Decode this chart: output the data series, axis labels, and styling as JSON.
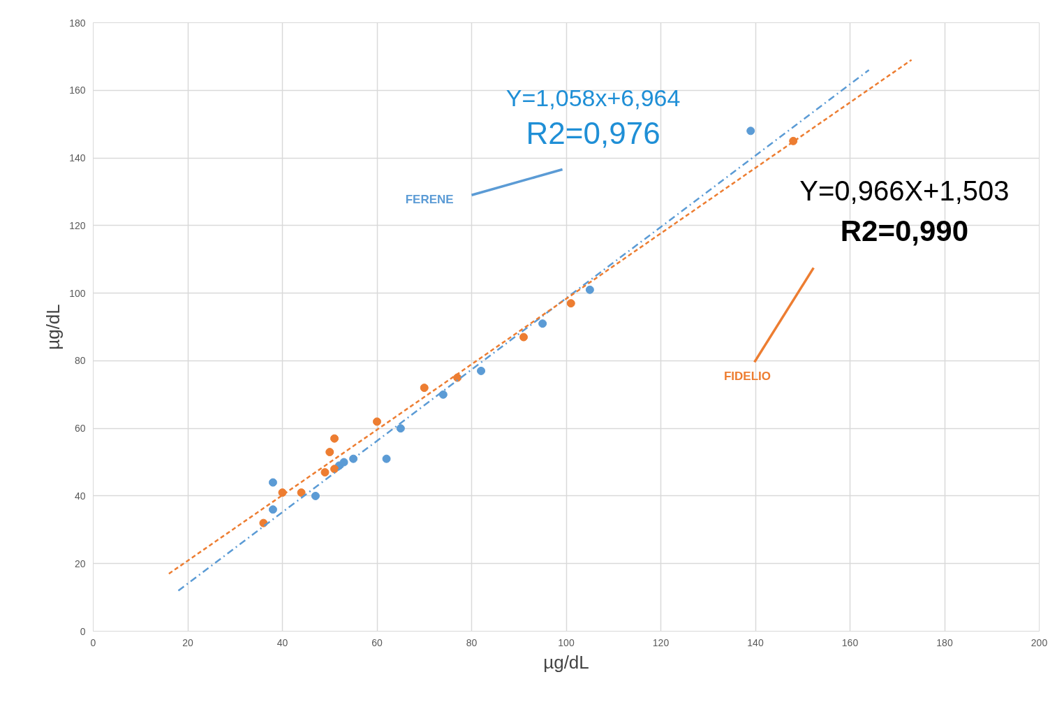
{
  "chart_data": {
    "type": "scatter",
    "xlabel": "µg/dL",
    "ylabel": "µg/dL",
    "xlim": [
      0,
      200
    ],
    "ylim": [
      0,
      180
    ],
    "xticks": [
      0,
      20,
      40,
      60,
      80,
      100,
      120,
      140,
      160,
      180,
      200
    ],
    "yticks": [
      0,
      20,
      40,
      60,
      80,
      100,
      120,
      140,
      160,
      180
    ],
    "grid": true,
    "marker": "circle",
    "series": [
      {
        "name": "FERENE",
        "color": "#5b9bd5",
        "x": [
          38,
          38,
          47,
          52,
          53,
          55,
          62,
          65,
          74,
          82,
          95,
          105,
          139
        ],
        "values": [
          44,
          36,
          40,
          49,
          50,
          51,
          51,
          60,
          70,
          77,
          91,
          101,
          148
        ]
      },
      {
        "name": "FIDELIO",
        "color": "#ed7d31",
        "x": [
          36,
          40,
          44,
          49,
          50,
          51,
          51,
          60,
          70,
          77,
          91,
          101,
          148
        ],
        "values": [
          32,
          41,
          41,
          47,
          53,
          57,
          48,
          62,
          72,
          75,
          87,
          97,
          145
        ]
      },
      {
        "type": "line",
        "color": "#5b9bd5",
        "line_style": "dashdot",
        "marker": "none",
        "x": [
          18,
          164
        ],
        "values": [
          12,
          166
        ]
      },
      {
        "type": "line",
        "color": "#ed7d31",
        "line_style": "dashed",
        "marker": "none",
        "x": [
          16,
          173
        ],
        "values": [
          17,
          169
        ]
      }
    ],
    "annotations": [
      "Y=1,058x+6,964",
      "R2=0,976",
      "Y=0,966X+1,503",
      "R2=0,990"
    ]
  }
}
